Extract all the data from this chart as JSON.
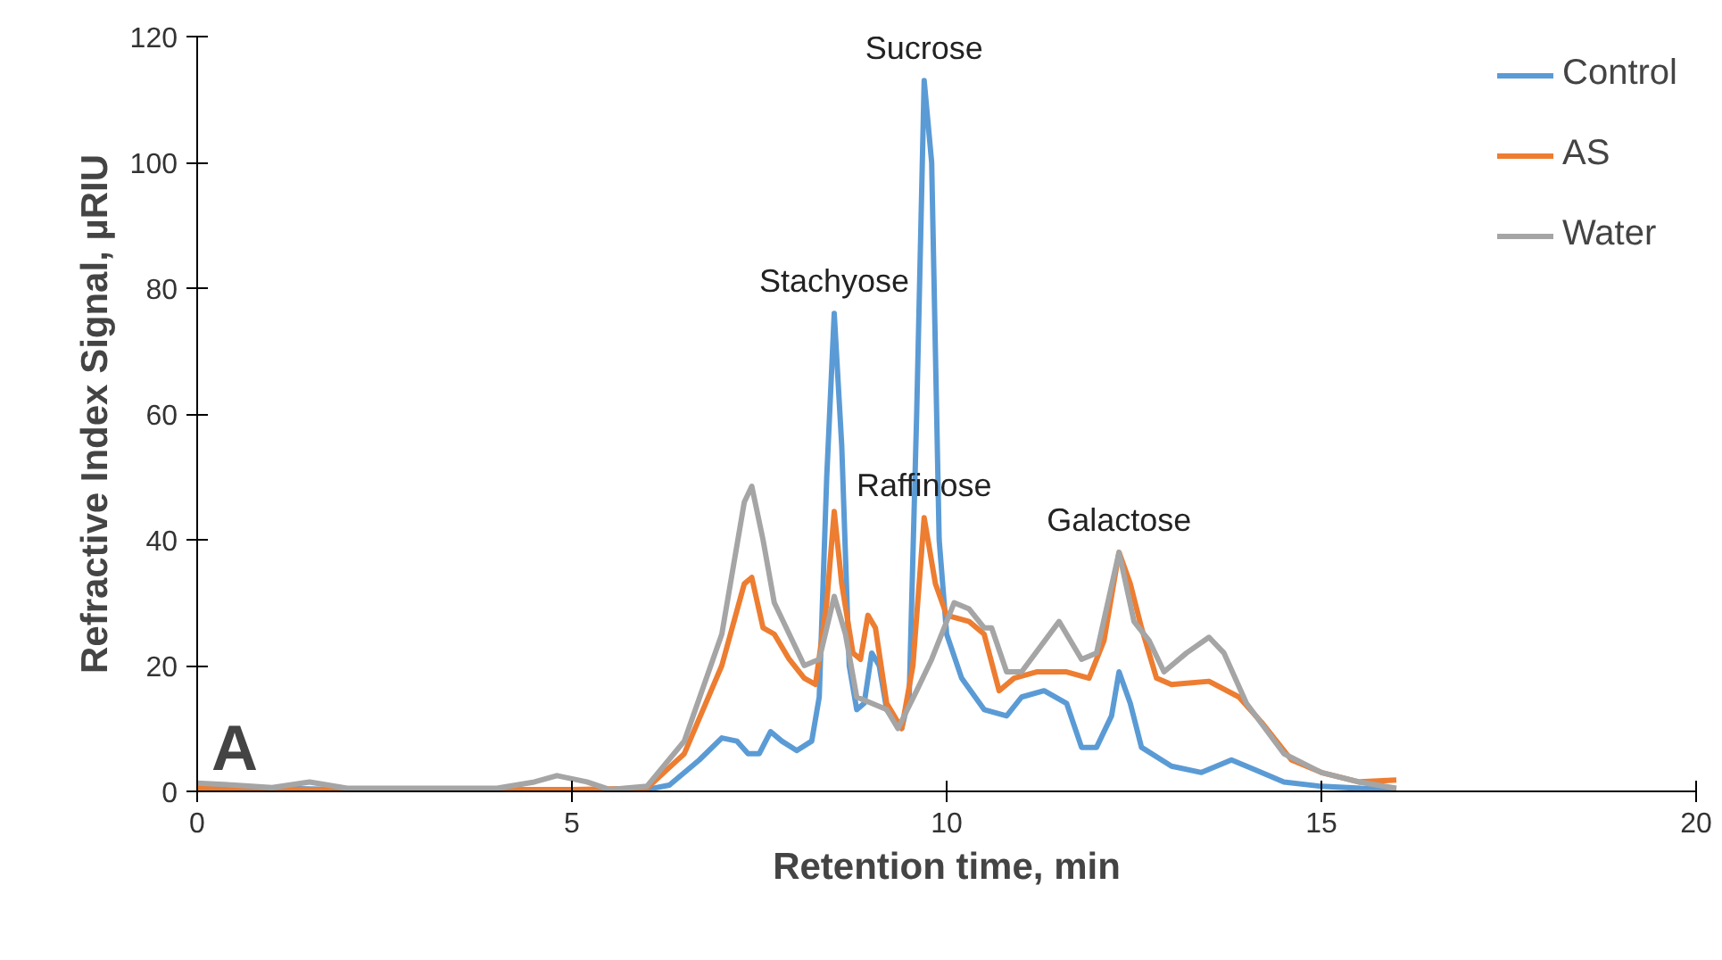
{
  "chart_data": {
    "type": "line",
    "xlabel": "Retention time, min",
    "ylabel": "Refractive Index Signal, µRIU",
    "xlim": [
      0,
      20
    ],
    "ylim": [
      0,
      120
    ],
    "xticks": [
      0,
      5,
      10,
      15,
      20
    ],
    "yticks": [
      0,
      20,
      40,
      60,
      80,
      100,
      120
    ],
    "grid": false,
    "legend": "top right",
    "marker": "none",
    "line_style": "solid",
    "series": [
      {
        "name": "Control",
        "color": "#5b9bd5",
        "x": [
          0,
          0.5,
          1,
          2,
          4,
          5,
          6,
          6.3,
          6.7,
          7,
          7.2,
          7.35,
          7.5,
          7.65,
          7.8,
          8,
          8.2,
          8.3,
          8.4,
          8.5,
          8.6,
          8.7,
          8.8,
          8.9,
          9.0,
          9.1,
          9.2,
          9.4,
          9.5,
          9.6,
          9.7,
          9.8,
          9.9,
          10.0,
          10.2,
          10.5,
          10.8,
          11,
          11.3,
          11.6,
          11.8,
          12,
          12.2,
          12.3,
          12.45,
          12.6,
          13,
          13.4,
          13.8,
          14.1,
          14.5,
          15,
          16
        ],
        "values": [
          1,
          0.8,
          0.5,
          0.3,
          0.3,
          0.3,
          0.3,
          1,
          5,
          8.5,
          8,
          6,
          6,
          9.5,
          8,
          6.5,
          8,
          15,
          50,
          76,
          55,
          20,
          13,
          14,
          22,
          20,
          13,
          10,
          15,
          60,
          113,
          100,
          40,
          25,
          18,
          13,
          12,
          15,
          16,
          14,
          7,
          7,
          12,
          19,
          14,
          7,
          4,
          3,
          5,
          3.5,
          1.5,
          0.8,
          0.2
        ]
      },
      {
        "name": "AS",
        "color": "#ed7d31",
        "x": [
          0,
          1.5,
          5,
          6,
          6.5,
          7,
          7.3,
          7.4,
          7.55,
          7.7,
          7.9,
          8.1,
          8.25,
          8.4,
          8.5,
          8.6,
          8.75,
          8.85,
          8.95,
          9.05,
          9.2,
          9.4,
          9.55,
          9.7,
          9.85,
          10,
          10.3,
          10.5,
          10.7,
          10.9,
          11.2,
          11.6,
          11.9,
          12.1,
          12.3,
          12.45,
          12.6,
          12.8,
          13,
          13.5,
          13.9,
          14.2,
          14.6,
          15,
          15.5,
          16
        ],
        "values": [
          0.5,
          0.3,
          0.3,
          0.5,
          6,
          20,
          33,
          34,
          26,
          25,
          21,
          18,
          17,
          30,
          44.5,
          33,
          22,
          21,
          28,
          26,
          14,
          10,
          20,
          43.5,
          33,
          28,
          27,
          25,
          16,
          18,
          19,
          19,
          18,
          24,
          38,
          33,
          26,
          18,
          17,
          17.5,
          15,
          11,
          5,
          3,
          1.5,
          1.8
        ]
      },
      {
        "name": "Water",
        "color": "#a5a5a5",
        "x": [
          0,
          0.5,
          1,
          1.5,
          2,
          4,
          4.5,
          4.8,
          5.2,
          5.5,
          6,
          6.5,
          7,
          7.3,
          7.4,
          7.55,
          7.7,
          7.9,
          8.1,
          8.3,
          8.5,
          8.65,
          8.8,
          9,
          9.2,
          9.35,
          9.6,
          9.8,
          10.1,
          10.3,
          10.5,
          10.6,
          10.8,
          11,
          11.5,
          11.8,
          12,
          12.3,
          12.5,
          12.7,
          12.9,
          13.2,
          13.5,
          13.7,
          14,
          14.5,
          15,
          15.5,
          16
        ],
        "values": [
          1.3,
          1,
          0.6,
          1.5,
          0.5,
          0.5,
          1.5,
          2.5,
          1.5,
          0.3,
          0.8,
          8,
          25,
          46,
          48.5,
          40,
          30,
          25,
          20,
          21,
          31,
          25,
          15,
          14,
          13,
          10,
          16,
          21,
          30,
          29,
          26,
          26,
          19,
          19,
          27,
          21,
          22,
          38,
          27,
          24,
          19,
          22,
          24.5,
          22,
          14,
          6,
          3,
          1.5,
          0.5
        ]
      }
    ],
    "annotations": [
      {
        "text": "Sucrose",
        "x": 9.7,
        "y": 113
      },
      {
        "text": "Stachyose",
        "x": 8.5,
        "y": 76
      },
      {
        "text": "Raffinose",
        "x": 9.7,
        "y": 43.5
      },
      {
        "text": "Galactose",
        "x": 12.3,
        "y": 38
      },
      "A"
    ]
  }
}
